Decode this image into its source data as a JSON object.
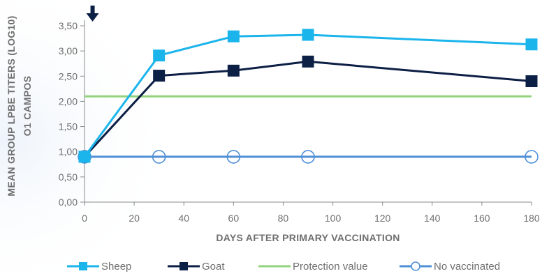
{
  "chart_data": {
    "type": "line",
    "xlabel": "DAYS AFTER PRIMARY VACCINATION",
    "ylabel_lines": [
      "MEAN GROUP LPBE TITERS  (LOG10)",
      "O1 CAMPOS"
    ],
    "xlim": [
      0,
      180
    ],
    "ylim": [
      0,
      3.5
    ],
    "x_ticks": [
      0,
      20,
      40,
      60,
      80,
      100,
      120,
      140,
      160,
      180
    ],
    "x_tick_labels": [
      "0",
      "20",
      "40",
      "60",
      "80",
      "100",
      "120",
      "140",
      "160",
      "180"
    ],
    "y_ticks": [
      0,
      0.5,
      1,
      1.5,
      2,
      2.5,
      3,
      3.5
    ],
    "y_tick_labels": [
      "0,00",
      "0,50",
      "1,00",
      "1,50",
      "2,00",
      "2,50",
      "3,00",
      "3,50"
    ],
    "legend_position": "bottom",
    "vaccination_marker_x": 1,
    "series": [
      {
        "name": "Sheep",
        "color": "#1bb5ec",
        "marker": "filled-square",
        "x": [
          0,
          30,
          60,
          90,
          180
        ],
        "y": [
          0.9,
          2.91,
          3.29,
          3.32,
          3.13
        ]
      },
      {
        "name": "Goat",
        "color": "#0c1f45",
        "marker": "filled-square",
        "x": [
          0,
          30,
          60,
          90,
          180
        ],
        "y": [
          0.9,
          2.51,
          2.61,
          2.79,
          2.4
        ]
      },
      {
        "name": "Protection value",
        "color": "#93d37d",
        "marker": "none",
        "x": [
          0,
          180
        ],
        "y": [
          2.1,
          2.1
        ]
      },
      {
        "name": "No vaccinated",
        "color": "#4f8fd6",
        "marker": "open-circle",
        "x": [
          0,
          30,
          60,
          90,
          180
        ],
        "y": [
          0.9,
          0.9,
          0.9,
          0.9,
          0.9
        ]
      }
    ]
  },
  "colors": {
    "axis": "#8a8a8a",
    "text": "#6f6f6f",
    "arrow": "#0c1f45"
  },
  "icons": {
    "vaccination_marker": "down-arrow-icon"
  }
}
